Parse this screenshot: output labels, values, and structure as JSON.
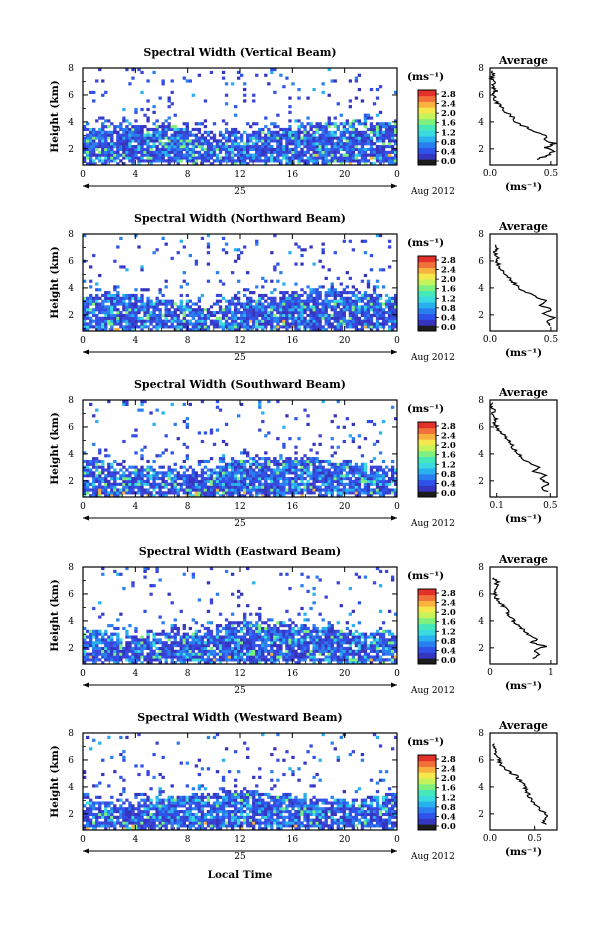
{
  "figure": {
    "date_label": "Aug 2012",
    "day_label": "25",
    "xlabel": "Local Time",
    "ylabel": "Height (km)",
    "unit_label": "(ms⁻¹)",
    "avg_title": "Average",
    "avg_xlabel": "(ms⁻¹)"
  },
  "colorbar": {
    "ticks": [
      "2.8",
      "2.4",
      "2.0",
      "1.6",
      "1.2",
      "0.8",
      "0.4",
      "0.0"
    ],
    "colors": [
      "#1c1c1c",
      "#3535c0",
      "#2f52ea",
      "#2a7ff0",
      "#27b1ee",
      "#39dbe0",
      "#45e8b8",
      "#7ef07e",
      "#c6f35a",
      "#f4e84c",
      "#f9b23e",
      "#f2703a",
      "#e4302a"
    ]
  },
  "chart_data": [
    {
      "type": "heatmap",
      "title": "Spectral Width (Vertical Beam)",
      "x_ticks": [
        "0",
        "4",
        "8",
        "12",
        "16",
        "20",
        "0"
      ],
      "y_ticks": [
        "2",
        "4",
        "6",
        "8"
      ],
      "xlim": [
        0,
        24
      ],
      "ylim": [
        0.8,
        8
      ],
      "lower_top": 3.5,
      "upper_density": 0.06,
      "average": {
        "x_ticks": [
          "0.0",
          "0.5"
        ],
        "xlim": [
          0,
          0.55
        ],
        "ylim": [
          0.8,
          8
        ],
        "profile": [
          [
            1.2,
            0.38
          ],
          [
            1.5,
            0.47
          ],
          [
            1.8,
            0.52
          ],
          [
            2.1,
            0.46
          ],
          [
            2.4,
            0.53
          ],
          [
            2.7,
            0.43
          ],
          [
            3.0,
            0.47
          ],
          [
            3.3,
            0.37
          ],
          [
            3.6,
            0.3
          ],
          [
            3.9,
            0.22
          ],
          [
            4.2,
            0.2
          ],
          [
            4.5,
            0.17
          ],
          [
            4.8,
            0.12
          ],
          [
            5.1,
            0.1
          ],
          [
            5.4,
            0.06
          ],
          [
            5.7,
            0.04
          ],
          [
            6.0,
            0.03
          ],
          [
            6.3,
            0.05
          ],
          [
            6.6,
            0.02
          ],
          [
            6.9,
            0.03
          ],
          [
            7.2,
            0.01
          ],
          [
            7.5,
            0.02
          ],
          [
            7.8,
            0.02
          ]
        ]
      }
    },
    {
      "type": "heatmap",
      "title": "Spectral Width (Northward Beam)",
      "x_ticks": [
        "0",
        "4",
        "8",
        "12",
        "16",
        "20",
        "0"
      ],
      "y_ticks": [
        "2",
        "4",
        "6",
        "8"
      ],
      "xlim": [
        0,
        24
      ],
      "ylim": [
        0.8,
        8
      ],
      "lower_top": 3.3,
      "upper_density": 0.05,
      "average": {
        "x_ticks": [
          "0.0",
          "0.5"
        ],
        "xlim": [
          0,
          0.55
        ],
        "ylim": [
          0.8,
          8
        ],
        "profile": [
          [
            1.2,
            0.5
          ],
          [
            1.5,
            0.46
          ],
          [
            1.8,
            0.52
          ],
          [
            2.1,
            0.44
          ],
          [
            2.4,
            0.5
          ],
          [
            2.7,
            0.42
          ],
          [
            3.0,
            0.47
          ],
          [
            3.3,
            0.38
          ],
          [
            3.6,
            0.32
          ],
          [
            3.9,
            0.24
          ],
          [
            4.2,
            0.22
          ],
          [
            4.5,
            0.18
          ],
          [
            4.8,
            0.15
          ],
          [
            5.1,
            0.12
          ],
          [
            5.4,
            0.09
          ],
          [
            5.7,
            0.07
          ],
          [
            6.0,
            0.05
          ],
          [
            6.3,
            0.06
          ],
          [
            6.6,
            0.04
          ],
          [
            6.9,
            0.06
          ],
          [
            7.2,
            0.05
          ]
        ]
      }
    },
    {
      "type": "heatmap",
      "title": "Spectral Width (Southward Beam)",
      "x_ticks": [
        "0",
        "4",
        "8",
        "12",
        "16",
        "20",
        "0"
      ],
      "y_ticks": [
        "2",
        "4",
        "6",
        "8"
      ],
      "xlim": [
        0,
        24
      ],
      "ylim": [
        0.8,
        8
      ],
      "lower_top": 3.2,
      "upper_density": 0.05,
      "average": {
        "x_ticks": [
          "0.1",
          "0.5"
        ],
        "xlim": [
          0.05,
          0.55
        ],
        "ylim": [
          0.8,
          8
        ],
        "profile": [
          [
            1.2,
            0.47
          ],
          [
            1.5,
            0.44
          ],
          [
            1.8,
            0.5
          ],
          [
            2.1,
            0.42
          ],
          [
            2.4,
            0.46
          ],
          [
            2.7,
            0.38
          ],
          [
            3.0,
            0.42
          ],
          [
            3.3,
            0.35
          ],
          [
            3.6,
            0.3
          ],
          [
            3.9,
            0.27
          ],
          [
            4.2,
            0.25
          ],
          [
            4.5,
            0.22
          ],
          [
            4.8,
            0.2
          ],
          [
            5.1,
            0.18
          ],
          [
            5.4,
            0.15
          ],
          [
            5.7,
            0.12
          ],
          [
            6.0,
            0.1
          ],
          [
            6.3,
            0.08
          ],
          [
            6.6,
            0.1
          ],
          [
            6.9,
            0.07
          ],
          [
            7.2,
            0.08
          ],
          [
            7.5,
            0.06
          ],
          [
            7.8,
            0.07
          ]
        ]
      }
    },
    {
      "type": "heatmap",
      "title": "Spectral Width (Eastward Beam)",
      "x_ticks": [
        "0",
        "4",
        "8",
        "12",
        "16",
        "20",
        "0"
      ],
      "y_ticks": [
        "2",
        "4",
        "6",
        "8"
      ],
      "xlim": [
        0,
        24
      ],
      "ylim": [
        0.8,
        8
      ],
      "lower_top": 3.4,
      "upper_density": 0.04,
      "average": {
        "x_ticks": [
          "0",
          "1"
        ],
        "xlim": [
          0,
          1.1
        ],
        "ylim": [
          0.8,
          8
        ],
        "profile": [
          [
            1.2,
            0.7
          ],
          [
            1.5,
            0.8
          ],
          [
            1.8,
            0.72
          ],
          [
            2.1,
            0.9
          ],
          [
            2.4,
            0.7
          ],
          [
            2.7,
            0.78
          ],
          [
            3.0,
            0.62
          ],
          [
            3.3,
            0.55
          ],
          [
            3.6,
            0.48
          ],
          [
            3.9,
            0.4
          ],
          [
            4.2,
            0.38
          ],
          [
            4.5,
            0.3
          ],
          [
            4.8,
            0.28
          ],
          [
            5.1,
            0.22
          ],
          [
            5.4,
            0.15
          ],
          [
            5.7,
            0.1
          ],
          [
            6.0,
            0.08
          ],
          [
            6.3,
            0.06
          ],
          [
            6.6,
            0.1
          ],
          [
            6.9,
            0.12
          ],
          [
            7.2,
            0.06
          ]
        ]
      }
    },
    {
      "type": "heatmap",
      "title": "Spectral Width (Westward Beam)",
      "x_ticks": [
        "0",
        "4",
        "8",
        "12",
        "16",
        "20",
        "0"
      ],
      "y_ticks": [
        "2",
        "4",
        "6",
        "8"
      ],
      "xlim": [
        0,
        24
      ],
      "ylim": [
        0.8,
        8
      ],
      "lower_top": 3.2,
      "upper_density": 0.05,
      "average": {
        "x_ticks": [
          "0.0",
          "0.5"
        ],
        "xlim": [
          0,
          0.75
        ],
        "ylim": [
          0.8,
          8
        ],
        "profile": [
          [
            1.2,
            0.62
          ],
          [
            1.5,
            0.58
          ],
          [
            1.8,
            0.66
          ],
          [
            2.1,
            0.6
          ],
          [
            2.4,
            0.55
          ],
          [
            2.7,
            0.5
          ],
          [
            3.0,
            0.47
          ],
          [
            3.3,
            0.44
          ],
          [
            3.6,
            0.42
          ],
          [
            3.9,
            0.4
          ],
          [
            4.2,
            0.38
          ],
          [
            4.5,
            0.33
          ],
          [
            4.8,
            0.3
          ],
          [
            5.1,
            0.22
          ],
          [
            5.4,
            0.15
          ],
          [
            5.7,
            0.12
          ],
          [
            6.0,
            0.1
          ],
          [
            6.3,
            0.08
          ],
          [
            6.6,
            0.05
          ],
          [
            6.9,
            0.04
          ],
          [
            7.2,
            0.05
          ]
        ]
      }
    }
  ]
}
